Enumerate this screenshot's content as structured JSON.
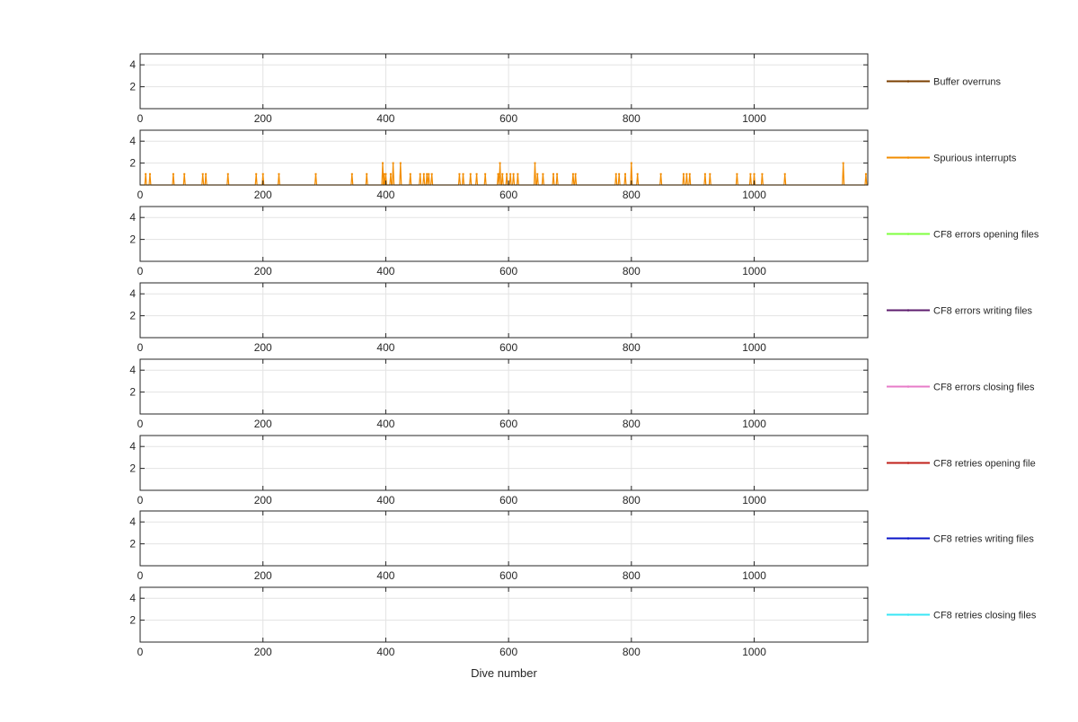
{
  "chart_data": {
    "type": "line",
    "xlabel": "Dive number",
    "xlim": [
      0,
      1185
    ],
    "ylim": [
      0,
      5
    ],
    "xticks": [
      0,
      200,
      400,
      600,
      800,
      1000
    ],
    "yticks": [
      2,
      4
    ],
    "grid": true,
    "legend_placement": "right",
    "series": [
      {
        "name": "Buffer overruns",
        "color": "#7B3F00",
        "values": []
      },
      {
        "name": "Spurious interrupts",
        "color": "#F28C00",
        "events": [
          [
            9,
            1
          ],
          [
            16,
            1
          ],
          [
            54,
            1
          ],
          [
            72,
            1
          ],
          [
            102,
            1
          ],
          [
            107,
            1
          ],
          [
            143,
            1
          ],
          [
            189,
            1
          ],
          [
            200,
            1
          ],
          [
            226,
            1
          ],
          [
            286,
            1
          ],
          [
            345,
            1
          ],
          [
            369,
            1
          ],
          [
            395,
            2
          ],
          [
            397,
            1
          ],
          [
            400,
            1
          ],
          [
            408,
            1
          ],
          [
            412,
            2
          ],
          [
            424,
            2
          ],
          [
            440,
            1
          ],
          [
            456,
            1
          ],
          [
            462,
            1
          ],
          [
            467,
            1
          ],
          [
            470,
            1
          ],
          [
            475,
            1
          ],
          [
            520,
            1
          ],
          [
            526,
            1
          ],
          [
            538,
            1
          ],
          [
            548,
            1
          ],
          [
            562,
            1
          ],
          [
            583,
            1
          ],
          [
            586,
            2
          ],
          [
            590,
            1
          ],
          [
            597,
            1
          ],
          [
            603,
            1
          ],
          [
            608,
            1
          ],
          [
            615,
            1
          ],
          [
            643,
            2
          ],
          [
            647,
            1
          ],
          [
            656,
            1
          ],
          [
            673,
            1
          ],
          [
            679,
            1
          ],
          [
            705,
            1
          ],
          [
            709,
            1
          ],
          [
            775,
            1
          ],
          [
            780,
            1
          ],
          [
            790,
            1
          ],
          [
            800,
            2
          ],
          [
            810,
            1
          ],
          [
            848,
            1
          ],
          [
            885,
            1
          ],
          [
            890,
            1
          ],
          [
            895,
            1
          ],
          [
            920,
            1
          ],
          [
            928,
            1
          ],
          [
            972,
            1
          ],
          [
            994,
            1
          ],
          [
            1000,
            1
          ],
          [
            1013,
            1
          ],
          [
            1050,
            1
          ],
          [
            1145,
            2
          ],
          [
            1182,
            1
          ]
        ]
      },
      {
        "name": "CF8 errors opening files",
        "color": "#7FFF3F",
        "values": []
      },
      {
        "name": "CF8 errors writing files",
        "color": "#5E1D6E",
        "values": []
      },
      {
        "name": "CF8 errors closing files",
        "color": "#E77BC8",
        "values": []
      },
      {
        "name": "CF8 retries opening file",
        "color": "#C0201A",
        "values": []
      },
      {
        "name": "CF8 retries writing files",
        "color": "#0A14C8",
        "values": []
      },
      {
        "name": "CF8 retries closing files",
        "color": "#39E6F5",
        "values": []
      }
    ]
  }
}
